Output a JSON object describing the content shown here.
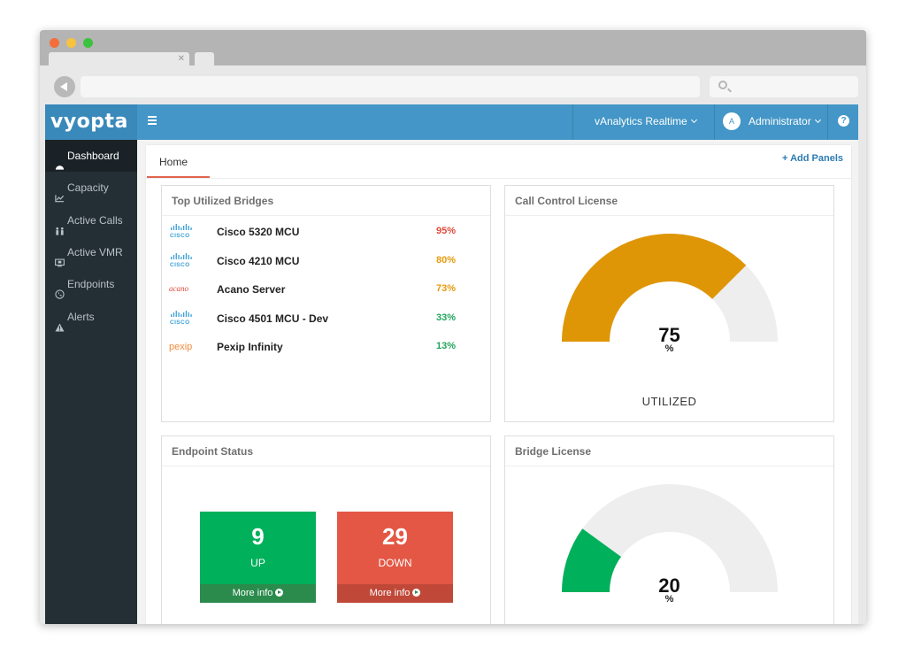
{
  "app": {
    "logo": "vyopta"
  },
  "topnav": {
    "realtime_label": "vAnalytics Realtime",
    "user_initial": "A",
    "user_label": "Administrator",
    "help_glyph": "?"
  },
  "sidebar": {
    "items": [
      {
        "label": "Dashboard",
        "icon": "dashboard-icon",
        "active": true
      },
      {
        "label": "Capacity",
        "icon": "chart-icon",
        "active": false
      },
      {
        "label": "Active Calls",
        "icon": "active-calls-icon",
        "active": false
      },
      {
        "label": "Active VMR",
        "icon": "vmr-icon",
        "active": false
      },
      {
        "label": "Endpoints",
        "icon": "phone-icon",
        "active": false
      },
      {
        "label": "Alerts",
        "icon": "warning-icon",
        "active": false
      }
    ]
  },
  "content": {
    "tab_label": "Home",
    "add_panels_label": "+ Add Panels"
  },
  "bridges_panel": {
    "title": "Top Utilized Bridges",
    "rows": [
      {
        "vendor": "cisco",
        "logo_text": "CISCO",
        "name": "Cisco 5320 MCU",
        "pct": "95%",
        "color": "#e14a3b"
      },
      {
        "vendor": "cisco",
        "logo_text": "CISCO",
        "name": "Cisco 4210 MCU",
        "pct": "80%",
        "color": "#e69b0e"
      },
      {
        "vendor": "acano",
        "logo_text": "acano",
        "name": "Acano Server",
        "pct": "73%",
        "color": "#e69b0e"
      },
      {
        "vendor": "cisco",
        "logo_text": "CISCO",
        "name": "Cisco 4501 MCU - Dev",
        "pct": "33%",
        "color": "#23a45d"
      },
      {
        "vendor": "pexip",
        "logo_text": "pexip",
        "name": "Pexip Infinity",
        "pct": "13%",
        "color": "#23a45d"
      }
    ]
  },
  "call_control_panel": {
    "title": "Call Control License",
    "value": "75",
    "fraction": 0.75,
    "unit": "%",
    "label": "UTILIZED",
    "fill_color": "#df9606",
    "track_color": "#eeeeee"
  },
  "endpoint_panel": {
    "title": "Endpoint Status",
    "up": {
      "count": "9",
      "label": "UP",
      "more": "More info",
      "color": "#00b05a",
      "footer_color": "#2a8b4c"
    },
    "down": {
      "count": "29",
      "label": "DOWN",
      "more": "More info",
      "color": "#e35744",
      "footer_color": "#c04838"
    }
  },
  "bridge_license_panel": {
    "title": "Bridge License",
    "value": "20",
    "fraction": 0.2,
    "unit": "%",
    "fill_color": "#00b05a",
    "track_color": "#eeeeee"
  }
}
